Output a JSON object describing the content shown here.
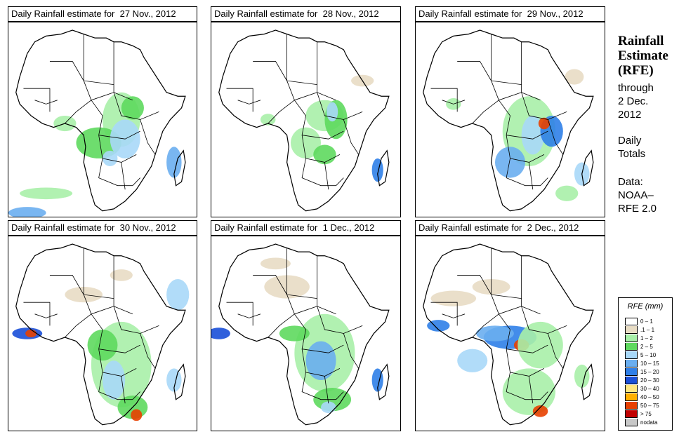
{
  "panels": [
    {
      "title": "Daily Rainfall estimate for  27 Nov., 2012"
    },
    {
      "title": "Daily Rainfall estimate for  28 Nov., 2012"
    },
    {
      "title": "Daily Rainfall estimate for  29 Nov., 2012"
    },
    {
      "title": "Daily Rainfall estimate for  30 Nov., 2012"
    },
    {
      "title": "Daily Rainfall estimate for  1 Dec., 2012"
    },
    {
      "title": "Daily Rainfall estimate for  2 Dec., 2012"
    }
  ],
  "side": {
    "heading": [
      "Rainfall",
      "Estimate",
      "(RFE)"
    ],
    "through": [
      "through",
      "2 Dec.",
      "2012"
    ],
    "period": [
      "Daily",
      "Totals"
    ],
    "source": [
      "Data:",
      "NOAA–",
      "RFE 2.0"
    ]
  },
  "legend": {
    "title": "RFE (mm)",
    "classes": [
      {
        "label": "0 – 1",
        "color": "#ffffff"
      },
      {
        "label": ".1 – 1",
        "color": "#e8dcc4"
      },
      {
        "label": "1 – 2",
        "color": "#a8f0a8"
      },
      {
        "label": "2 – 5",
        "color": "#5ed95e"
      },
      {
        "label": "5 – 10",
        "color": "#a8d8f8"
      },
      {
        "label": "10 – 15",
        "color": "#6aaef0"
      },
      {
        "label": "15 – 20",
        "color": "#2f7fe8"
      },
      {
        "label": "20 – 30",
        "color": "#1a4fd8"
      },
      {
        "label": "30 – 40",
        "color": "#ffe680"
      },
      {
        "label": "40 – 50",
        "color": "#ffb000"
      },
      {
        "label": "50 – 75",
        "color": "#e84000"
      },
      {
        "label": "> 75",
        "color": "#c00000"
      },
      {
        "label": "nodata",
        "color": "#c8c8c8"
      }
    ]
  }
}
